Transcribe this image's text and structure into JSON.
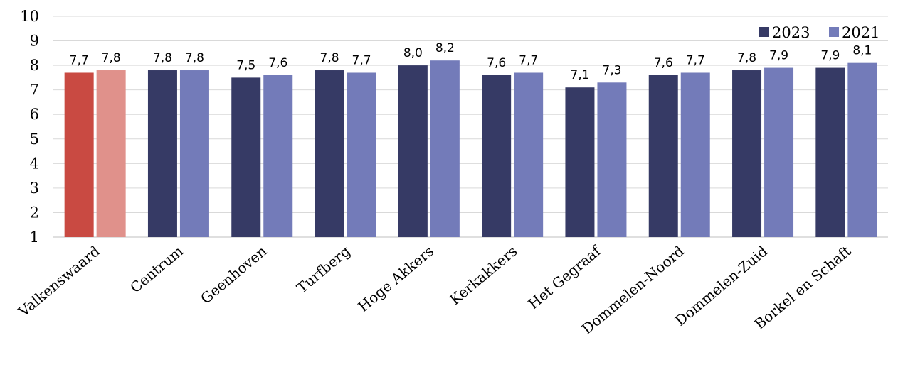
{
  "chart_data": {
    "type": "bar",
    "categories": [
      "Valkenswaard",
      "Centrum",
      "Geenhoven",
      "Turfberg",
      "Hoge Akkers",
      "Kerkakkers",
      "Het Gegraaf",
      "Dommelen-Noord",
      "Dommelen-Zuid",
      "Borkel en Schaft"
    ],
    "series": [
      {
        "name": "2023",
        "values": [
          7.7,
          7.8,
          7.5,
          7.8,
          8.0,
          7.6,
          7.1,
          7.6,
          7.8,
          7.9
        ],
        "labels": [
          "7,7",
          "7,8",
          "7,5",
          "7,8",
          "8,0",
          "7,6",
          "7,1",
          "7,6",
          "7,8",
          "7,9"
        ]
      },
      {
        "name": "2021",
        "values": [
          7.8,
          7.8,
          7.6,
          7.7,
          8.2,
          7.7,
          7.3,
          7.7,
          7.9,
          8.1
        ],
        "labels": [
          "7,8",
          "7,8",
          "7,6",
          "7,7",
          "8,2",
          "7,7",
          "7,3",
          "7,7",
          "7,9",
          "8,1"
        ]
      }
    ],
    "ylim": [
      1,
      10
    ],
    "yticks": [
      "1",
      "2",
      "3",
      "4",
      "5",
      "6",
      "7",
      "8",
      "9",
      "10"
    ],
    "grid": true,
    "legend": "top-right",
    "colors": {
      "series_2023": "#363a65",
      "series_2021": "#737bb9",
      "highlight_2023": "#c94a42",
      "highlight_2021": "#e0918b"
    },
    "highlight_category": "Valkenswaard"
  }
}
